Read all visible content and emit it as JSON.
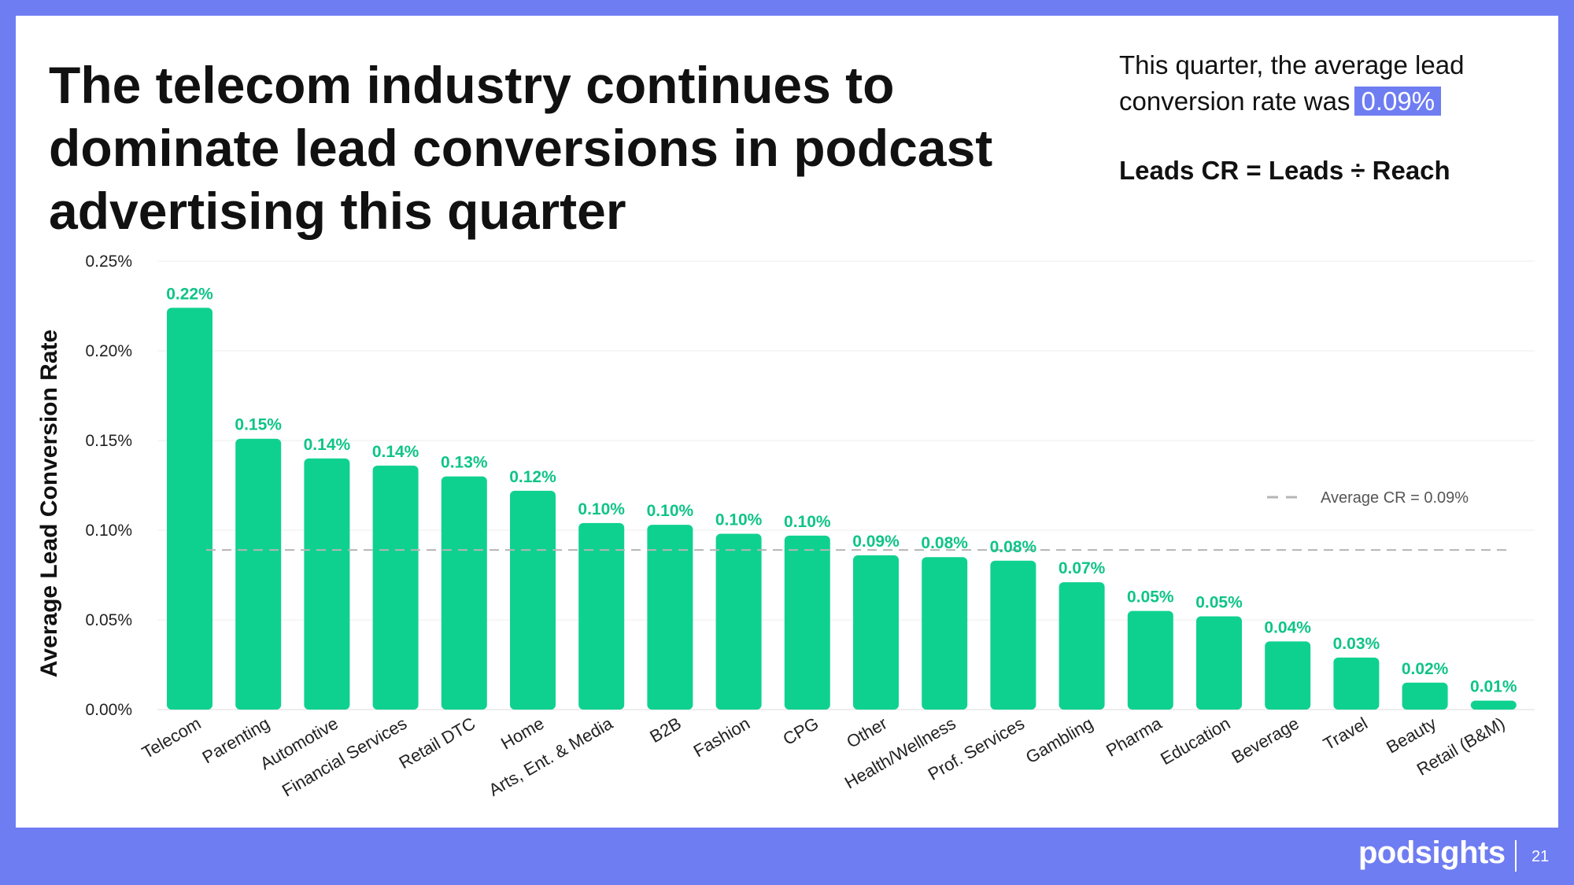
{
  "slide": {
    "headline": "The telecom industry continues to dominate lead conversions in podcast advertising this quarter",
    "note_prefix": "This quarter, the average lead conversion rate was",
    "note_value": "0.09%",
    "formula": "Leads CR = Leads ÷ Reach",
    "logo": "podsights",
    "page_number": "21",
    "background_color": "#6f7df2"
  },
  "chart_data": {
    "type": "bar",
    "title": "",
    "ylabel": "Average Lead Conversion Rate",
    "xlabel": "",
    "ylim": [
      0,
      0.25
    ],
    "yticks": [
      "0.00%",
      "0.05%",
      "0.10%",
      "0.15%",
      "0.20%",
      "0.25%"
    ],
    "ytick_values": [
      0,
      0.05,
      0.1,
      0.15,
      0.2,
      0.25
    ],
    "categories": [
      "Telecom",
      "Parenting",
      "Automotive",
      "Financial Services",
      "Retail DTC",
      "Home",
      "Arts, Ent. & Media",
      "B2B",
      "Fashion",
      "CPG",
      "Other",
      "Health/Wellness",
      "Prof. Services",
      "Gambling",
      "Pharma",
      "Education",
      "Beverage",
      "Travel",
      "Beauty",
      "Retail (B&M)"
    ],
    "values": [
      0.224,
      0.151,
      0.14,
      0.136,
      0.13,
      0.122,
      0.104,
      0.103,
      0.098,
      0.097,
      0.086,
      0.085,
      0.083,
      0.071,
      0.055,
      0.052,
      0.038,
      0.029,
      0.015,
      0.005
    ],
    "labels": [
      "0.22%",
      "0.15%",
      "0.14%",
      "0.14%",
      "0.13%",
      "0.12%",
      "0.10%",
      "0.10%",
      "0.10%",
      "0.10%",
      "0.09%",
      "0.08%",
      "0.08%",
      "0.07%",
      "0.05%",
      "0.05%",
      "0.04%",
      "0.03%",
      "0.02%",
      "0.01%"
    ],
    "average": 0.089,
    "average_label": "Average CR = 0.09%",
    "legend_position": "right",
    "grid": true,
    "bar_color": "#0fd18f",
    "label_color": "#0fc488",
    "avg_line_color": "#b5b5b5"
  }
}
